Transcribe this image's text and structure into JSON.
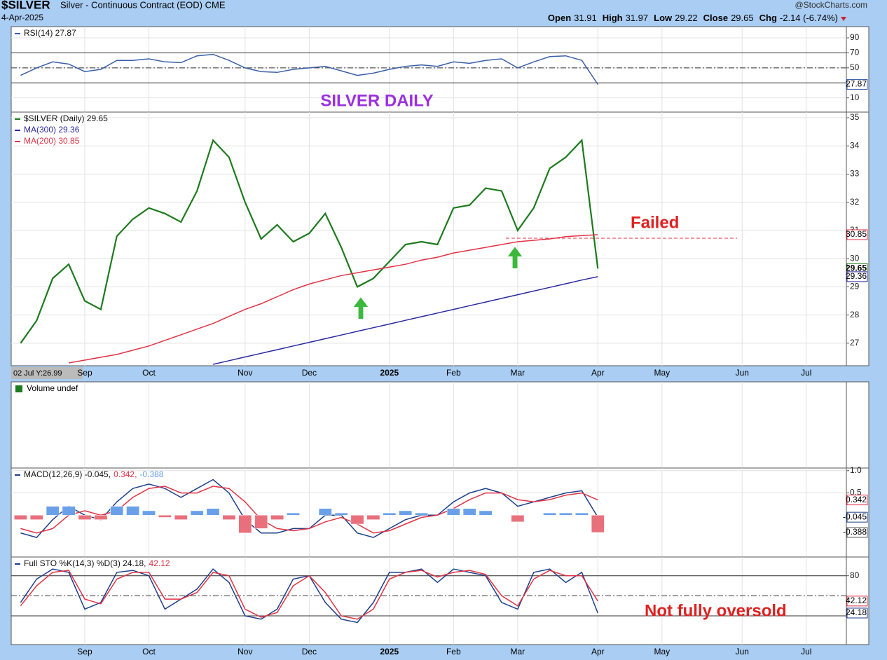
{
  "header": {
    "symbol": "$SILVER",
    "name": "Silver - Continuous Contract (EOD) CME",
    "date": "4-Apr-2025",
    "source": "@StockCharts.com",
    "quote": [
      {
        "label": "Open",
        "value": 31.91
      },
      {
        "label": "High",
        "value": 31.97
      },
      {
        "label": "Low",
        "value": 29.22
      },
      {
        "label": "Close",
        "value": 29.65
      },
      {
        "label": "Chg",
        "value": "-2.14 (-6.74%)"
      }
    ]
  },
  "annotations": [
    "SILVER DAILY",
    "Failed",
    "Not fully oversold"
  ],
  "chart_data": [
    {
      "type": "line",
      "legend": "stacked",
      "ylim": [
        -9,
        105
      ],
      "yticks": [
        10,
        50,
        70,
        90
      ],
      "levels": [
        30,
        70
      ],
      "midline": 50,
      "grid": true,
      "end_labels": true,
      "series": [
        {
          "name": "RSI(14) 27.87",
          "color": "#3a5fa8",
          "values": [
            40,
            50,
            58,
            55,
            45,
            48,
            60,
            60,
            62,
            58,
            57,
            66,
            68,
            60,
            50,
            45,
            44,
            48,
            50,
            52,
            46,
            40,
            43,
            48,
            52,
            54,
            52,
            58,
            56,
            60,
            62,
            50,
            58,
            65,
            66,
            60,
            27.87,
            null,
            null,
            null,
            null,
            null,
            null,
            null,
            null,
            null,
            null,
            null,
            null,
            null,
            null,
            null
          ]
        }
      ]
    },
    {
      "type": "line",
      "legend": "stacked",
      "ylim": [
        26.2,
        35.2
      ],
      "yticks": [
        27,
        28,
        29,
        30,
        31,
        32,
        33,
        34,
        35
      ],
      "grid": true,
      "end_labels": true,
      "cursor_label": "02 Jul Y:26.99",
      "categories": [
        null,
        null,
        null,
        null,
        "Sep",
        null,
        null,
        null,
        "Oct",
        null,
        null,
        null,
        null,
        null,
        "Nov",
        null,
        null,
        null,
        "Dec",
        null,
        null,
        null,
        null,
        "2025",
        null,
        null,
        null,
        "Feb",
        null,
        null,
        null,
        "Mar",
        null,
        null,
        null,
        null,
        "Apr",
        null,
        null,
        null,
        "May",
        null,
        null,
        null,
        null,
        "Jun",
        null,
        null,
        null,
        "Jul",
        null,
        null
      ],
      "series": [
        {
          "name": "$SILVER (Daily) 29.65",
          "color": "#1e7a1e",
          "values": [
            27.0,
            27.8,
            29.3,
            29.8,
            28.5,
            28.2,
            30.8,
            31.4,
            31.8,
            31.6,
            31.3,
            32.4,
            34.2,
            33.6,
            32.0,
            30.7,
            31.2,
            30.6,
            30.9,
            31.6,
            30.4,
            29.0,
            29.3,
            29.9,
            30.5,
            30.6,
            30.5,
            31.8,
            31.9,
            32.5,
            32.4,
            31.0,
            31.8,
            33.2,
            33.6,
            34.2,
            29.65,
            null,
            null,
            null,
            null,
            null,
            null,
            null,
            null,
            null,
            null,
            null,
            null,
            null,
            null,
            null
          ]
        },
        {
          "name": "MA(300) 29.36",
          "color": "#2a2aa0",
          "values": [
            null,
            null,
            null,
            null,
            null,
            null,
            null,
            null,
            null,
            null,
            null,
            null,
            26.25,
            26.38,
            26.51,
            26.64,
            26.77,
            26.9,
            27.03,
            27.16,
            27.29,
            27.42,
            27.55,
            27.68,
            27.81,
            27.94,
            28.07,
            28.2,
            28.33,
            28.46,
            28.59,
            28.72,
            28.85,
            28.98,
            29.11,
            29.24,
            29.36,
            null,
            null,
            null,
            null,
            null,
            null,
            null,
            null,
            null,
            null,
            null,
            null,
            null,
            null,
            null
          ]
        },
        {
          "name": "MA(200) 30.85",
          "color": "#e03345",
          "values": [
            null,
            null,
            null,
            26.3,
            26.4,
            26.5,
            26.6,
            26.75,
            26.9,
            27.1,
            27.3,
            27.5,
            27.7,
            27.95,
            28.2,
            28.4,
            28.65,
            28.9,
            29.1,
            29.25,
            29.4,
            29.5,
            29.6,
            29.7,
            29.8,
            29.95,
            30.05,
            30.2,
            30.3,
            30.4,
            30.5,
            30.6,
            30.65,
            30.7,
            30.78,
            30.82,
            30.85,
            null,
            null,
            null,
            null,
            null,
            null,
            null,
            null,
            null,
            null,
            null,
            null,
            null,
            null,
            null
          ]
        }
      ]
    },
    {
      "type": "volume",
      "legend": "stacked",
      "series": [
        {
          "name": "Volume undef",
          "color": "#000000",
          "values": []
        }
      ]
    },
    {
      "type": "line",
      "legend": "inline",
      "ylim": [
        -0.94,
        1.06
      ],
      "yticks": [
        {
          "value": 1,
          "label": "1.0"
        },
        0.5
      ],
      "grid": true,
      "end_labels": true,
      "series": [
        {
          "name": "MACD(12,26,9) -0.045,",
          "color": "#1d3f8a",
          "values": [
            -0.4,
            -0.5,
            -0.1,
            0.2,
            0.0,
            -0.1,
            0.3,
            0.6,
            0.7,
            0.6,
            0.4,
            0.6,
            0.8,
            0.5,
            -0.1,
            -0.4,
            -0.4,
            -0.3,
            -0.3,
            0.0,
            0.0,
            -0.4,
            -0.5,
            -0.3,
            -0.1,
            0.0,
            0.0,
            0.3,
            0.5,
            0.6,
            0.5,
            0.2,
            0.3,
            0.4,
            0.5,
            0.55,
            -0.045,
            null,
            null,
            null,
            null,
            null,
            null,
            null,
            null,
            null,
            null,
            null,
            null,
            null,
            null,
            null
          ]
        },
        {
          "name": "0.342,",
          "color": "#e03345",
          "values": [
            -0.3,
            -0.4,
            -0.3,
            0.0,
            0.1,
            0.0,
            0.1,
            0.4,
            0.6,
            0.65,
            0.5,
            0.5,
            0.65,
            0.6,
            0.3,
            -0.1,
            -0.3,
            -0.35,
            -0.3,
            -0.15,
            -0.05,
            -0.2,
            -0.4,
            -0.35,
            -0.2,
            -0.05,
            0.0,
            0.15,
            0.35,
            0.5,
            0.5,
            0.35,
            0.3,
            0.35,
            0.45,
            0.5,
            0.342,
            null,
            null,
            null,
            null,
            null,
            null,
            null,
            null,
            null,
            null,
            null,
            null,
            null,
            null,
            null
          ]
        },
        {
          "name": "-0.388",
          "type": "bar",
          "color": "#6aa0e8",
          "negative_color": "#e8707c",
          "values": [
            -0.1,
            -0.1,
            0.2,
            0.2,
            -0.1,
            -0.1,
            0.2,
            0.2,
            0.1,
            -0.05,
            -0.1,
            0.1,
            0.15,
            -0.1,
            -0.4,
            -0.3,
            -0.1,
            0.05,
            0.0,
            0.15,
            0.05,
            -0.2,
            -0.1,
            0.05,
            0.1,
            0.05,
            0.0,
            0.15,
            0.15,
            0.1,
            0.0,
            -0.15,
            0.0,
            0.05,
            0.05,
            0.05,
            -0.388,
            null,
            null,
            null,
            null,
            null,
            null,
            null,
            null,
            null,
            null,
            null,
            null,
            null,
            null,
            null
          ]
        }
      ]
    },
    {
      "type": "line",
      "legend": "inline",
      "ylim": [
        -23,
        108
      ],
      "yticks": [
        80
      ],
      "levels": [
        20,
        80
      ],
      "midline": 50,
      "grid": true,
      "end_labels": true,
      "series": [
        {
          "name": "Full STO %K(14,3) %D(3) 24.18,",
          "color": "#1d3f8a",
          "values": [
            40,
            75,
            90,
            85,
            30,
            40,
            85,
            88,
            80,
            30,
            45,
            60,
            90,
            70,
            20,
            15,
            30,
            75,
            80,
            40,
            15,
            10,
            40,
            85,
            85,
            90,
            70,
            90,
            85,
            80,
            40,
            30,
            85,
            90,
            70,
            85,
            24.18,
            null,
            null,
            null,
            null,
            null,
            null,
            null,
            null,
            null,
            null,
            null,
            null,
            null,
            null,
            null
          ]
        },
        {
          "name": "42.12",
          "color": "#e03345",
          "values": [
            35,
            65,
            85,
            88,
            45,
            38,
            75,
            85,
            85,
            45,
            45,
            55,
            85,
            80,
            30,
            18,
            25,
            65,
            80,
            55,
            20,
            15,
            30,
            75,
            85,
            88,
            78,
            85,
            88,
            82,
            50,
            35,
            75,
            88,
            80,
            80,
            42.12,
            null,
            null,
            null,
            null,
            null,
            null,
            null,
            null,
            null,
            null,
            null,
            null,
            null,
            null,
            null
          ]
        }
      ]
    }
  ]
}
